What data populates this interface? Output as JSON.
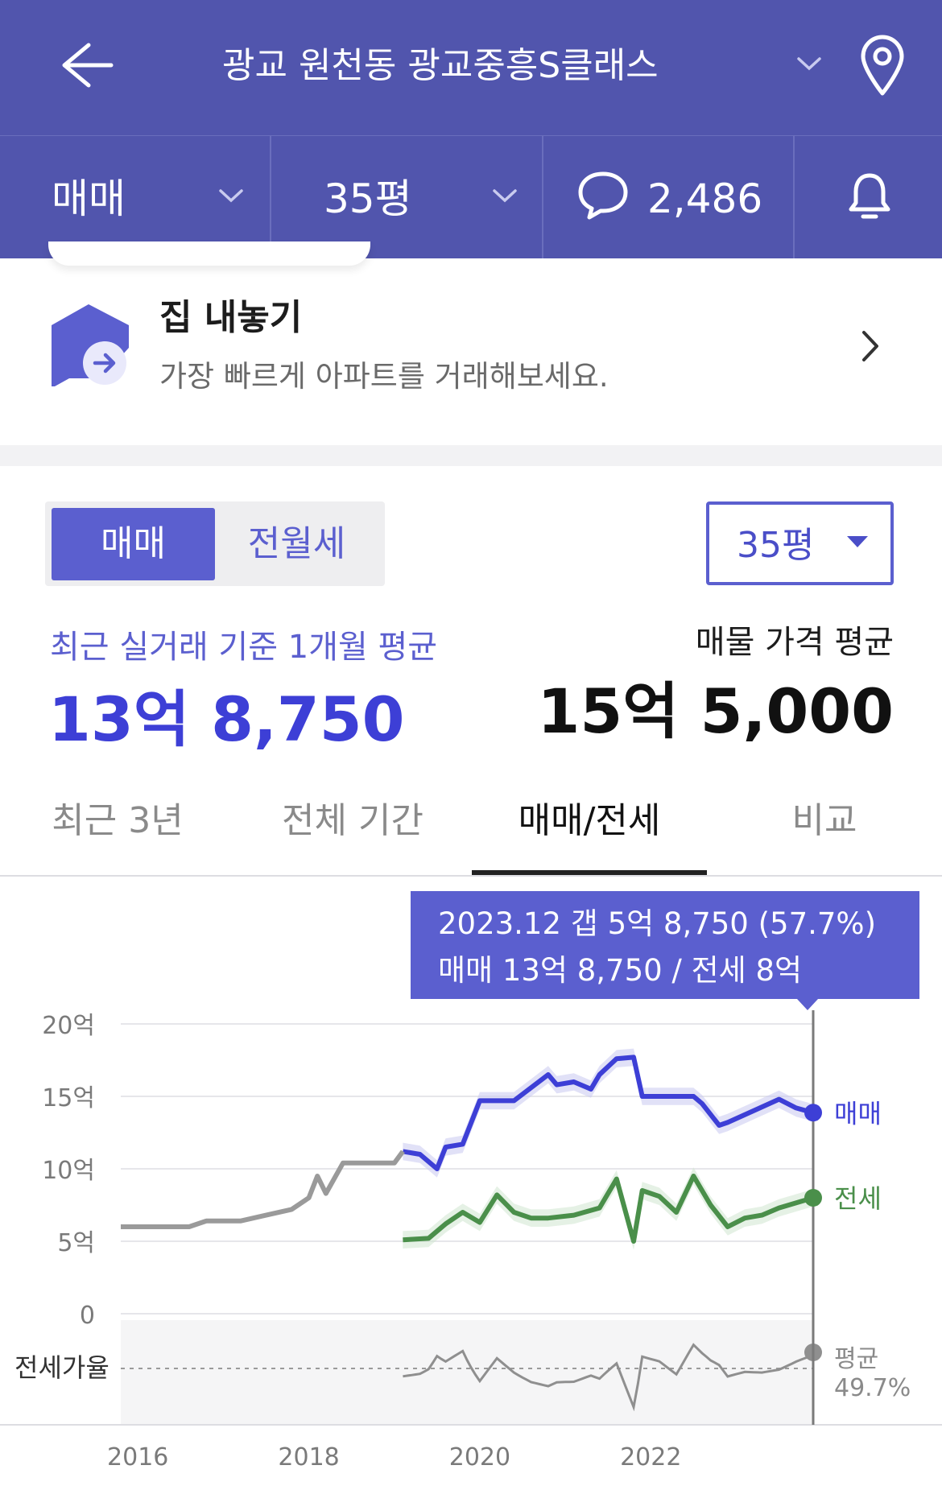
{
  "header": {
    "title": "광교 원천동 광교중흥S클래스",
    "deal_type": "매매",
    "size": "35평",
    "comment_count": "2,486"
  },
  "sell_banner": {
    "title": "집 내놓기",
    "subtitle": "가장 빠르게 아파트를 거래해보세요."
  },
  "segment": {
    "options": [
      "매매",
      "전월세"
    ],
    "selected": "매매",
    "size_select": "35평"
  },
  "prices": {
    "recent_label": "최근 실거래 기준 1개월 평균",
    "recent_value": "13억 8,750",
    "listing_label": "매물 가격 평균",
    "listing_value": "15억 5,000"
  },
  "tabs": [
    "최근 3년",
    "전체 기간",
    "매매/전세",
    "비교"
  ],
  "active_tab": "매매/전세",
  "callout": {
    "line1": "2023.12  갭 5억 8,750 (57.7%)",
    "line2": "매매 13억 8,750 / 전세 8억"
  },
  "colors": {
    "brand": "#5155ad",
    "accent": "#5b5fcf",
    "sale_line": "#3d3fd6",
    "jeonse_line": "#4a8f4a",
    "history_line": "#9a9a9a"
  },
  "chart_data": {
    "type": "line",
    "y_unit": "억",
    "yticks": [
      "20억",
      "15억",
      "10억",
      "5억",
      "0"
    ],
    "ylim": [
      0,
      20
    ],
    "xticks": [
      "2016",
      "2018",
      "2020",
      "2022"
    ],
    "ratio_label": "전세가율",
    "ratio_avg_label": "평균",
    "ratio_avg_value": "49.7%",
    "series": [
      {
        "name": "매매",
        "x": [
          2019.1,
          2019.3,
          2019.5,
          2019.6,
          2019.8,
          2020.0,
          2020.4,
          2020.8,
          2020.9,
          2021.1,
          2021.3,
          2021.4,
          2021.6,
          2021.8,
          2021.9,
          2022.1,
          2022.5,
          2022.6,
          2022.8,
          2022.9,
          2023.2,
          2023.5,
          2023.7,
          2023.9
        ],
        "values": [
          11.2,
          11.0,
          10.0,
          11.5,
          11.7,
          14.7,
          14.7,
          16.5,
          15.8,
          16.0,
          15.5,
          16.5,
          17.6,
          17.7,
          15.0,
          15.0,
          15.0,
          14.5,
          13.0,
          13.2,
          14.0,
          14.8,
          14.2,
          13.875
        ]
      },
      {
        "name": "전세",
        "x": [
          2019.1,
          2019.4,
          2019.6,
          2019.8,
          2020.0,
          2020.2,
          2020.4,
          2020.6,
          2020.8,
          2021.1,
          2021.4,
          2021.6,
          2021.8,
          2021.9,
          2022.1,
          2022.3,
          2022.5,
          2022.7,
          2022.9,
          2023.1,
          2023.3,
          2023.5,
          2023.9
        ],
        "values": [
          5.1,
          5.2,
          6.2,
          7.0,
          6.3,
          8.2,
          7.0,
          6.6,
          6.6,
          6.8,
          7.3,
          9.3,
          5.0,
          8.5,
          8.1,
          7.0,
          9.5,
          7.5,
          6.0,
          6.6,
          6.8,
          7.3,
          8.0
        ]
      },
      {
        "name": "history",
        "x": [
          2015.8,
          2016.2,
          2016.6,
          2016.8,
          2017.2,
          2017.5,
          2017.8,
          2018.0,
          2018.1,
          2018.2,
          2018.4,
          2018.6,
          2019.0,
          2019.1
        ],
        "values": [
          6.0,
          6.0,
          6.0,
          6.4,
          6.4,
          6.8,
          7.2,
          8.0,
          9.5,
          8.3,
          10.4,
          10.4,
          10.4,
          11.2
        ]
      }
    ]
  }
}
